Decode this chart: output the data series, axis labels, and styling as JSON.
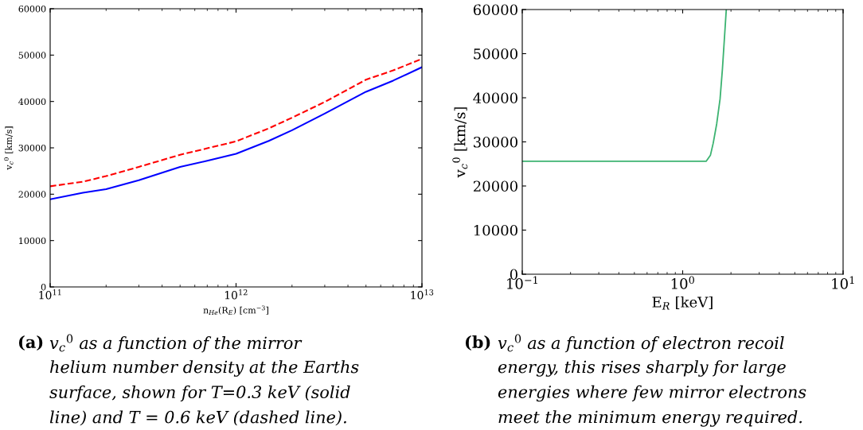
{
  "chart_data": [
    {
      "type": "line",
      "xlabel": "n$_{He}$(R$_{E}$) [cm$^{−3}$]",
      "ylabel": "v$_{c}$$^{0}$ [km/s]",
      "log": "x",
      "xlim": [
        100000000000.0,
        10000000000000.0
      ],
      "xticks": [
        {
          "value": 100000000000.0,
          "label": "10$^{11}$"
        },
        {
          "value": 1000000000000.0,
          "label": "10$^{12}$"
        },
        {
          "value": 10000000000000.0,
          "label": "10$^{13}$"
        }
      ],
      "ylim": [
        0,
        60000
      ],
      "yticks": [
        0,
        10000,
        20000,
        30000,
        40000,
        50000,
        60000
      ],
      "grid": false,
      "legend": false,
      "x": [
        100000000000.0,
        150000000000.0,
        200000000000.0,
        300000000000.0,
        500000000000.0,
        700000000000.0,
        1000000000000.0,
        1500000000000.0,
        2000000000000.0,
        3000000000000.0,
        5000000000000.0,
        7000000000000.0,
        10000000000000.0
      ],
      "series": [
        {
          "color": "#0000ff",
          "line_style": "solid",
          "values": [
            18900,
            20300,
            21100,
            23000,
            25900,
            27200,
            28700,
            31500,
            33800,
            37400,
            42100,
            44500,
            47400
          ]
        },
        {
          "color": "#ff0000",
          "line_style": "dashed",
          "values": [
            21700,
            22700,
            23900,
            25900,
            28500,
            29900,
            31400,
            34200,
            36500,
            39900,
            44700,
            46700,
            49200
          ]
        }
      ],
      "annotations": [
        "(a)",
        "v$_{c}$$^{0}$ as a function of the mirror",
        "helium number density at the Earths",
        "surface, shown for T=0.3 keV (solid",
        "line) and T = 0.6 keV (dashed line)."
      ]
    },
    {
      "type": "line",
      "xlabel": "E$_{R}$ [keV]",
      "ylabel": "v$_{c}$$^{0}$ [km/s]",
      "log": "x",
      "xlim": [
        0.1,
        10
      ],
      "xticks": [
        {
          "value": 0.1,
          "label": "10$^{−1}$"
        },
        {
          "value": 1,
          "label": "10$^{0}$"
        },
        {
          "value": 10,
          "label": "10$^{1}$"
        }
      ],
      "ylim": [
        0,
        60000
      ],
      "yticks": [
        0,
        10000,
        20000,
        30000,
        40000,
        50000,
        60000
      ],
      "grid": false,
      "legend": false,
      "x": [
        0.1,
        0.5,
        1.0,
        1.4,
        1.49,
        1.55,
        1.63,
        1.71,
        1.77,
        1.87
      ],
      "series": [
        {
          "color": "#3cb371",
          "line_style": "solid",
          "values": [
            25600,
            25600,
            25600,
            25600,
            27000,
            29700,
            34100,
            39700,
            46600,
            60000
          ]
        }
      ],
      "annotations": [
        "(b)",
        "v$_{c}$$^{0}$ as a function of electron recoil",
        "energy, this rises sharply for large",
        "energies where few mirror electrons",
        "meet the minimum energy required."
      ]
    }
  ]
}
